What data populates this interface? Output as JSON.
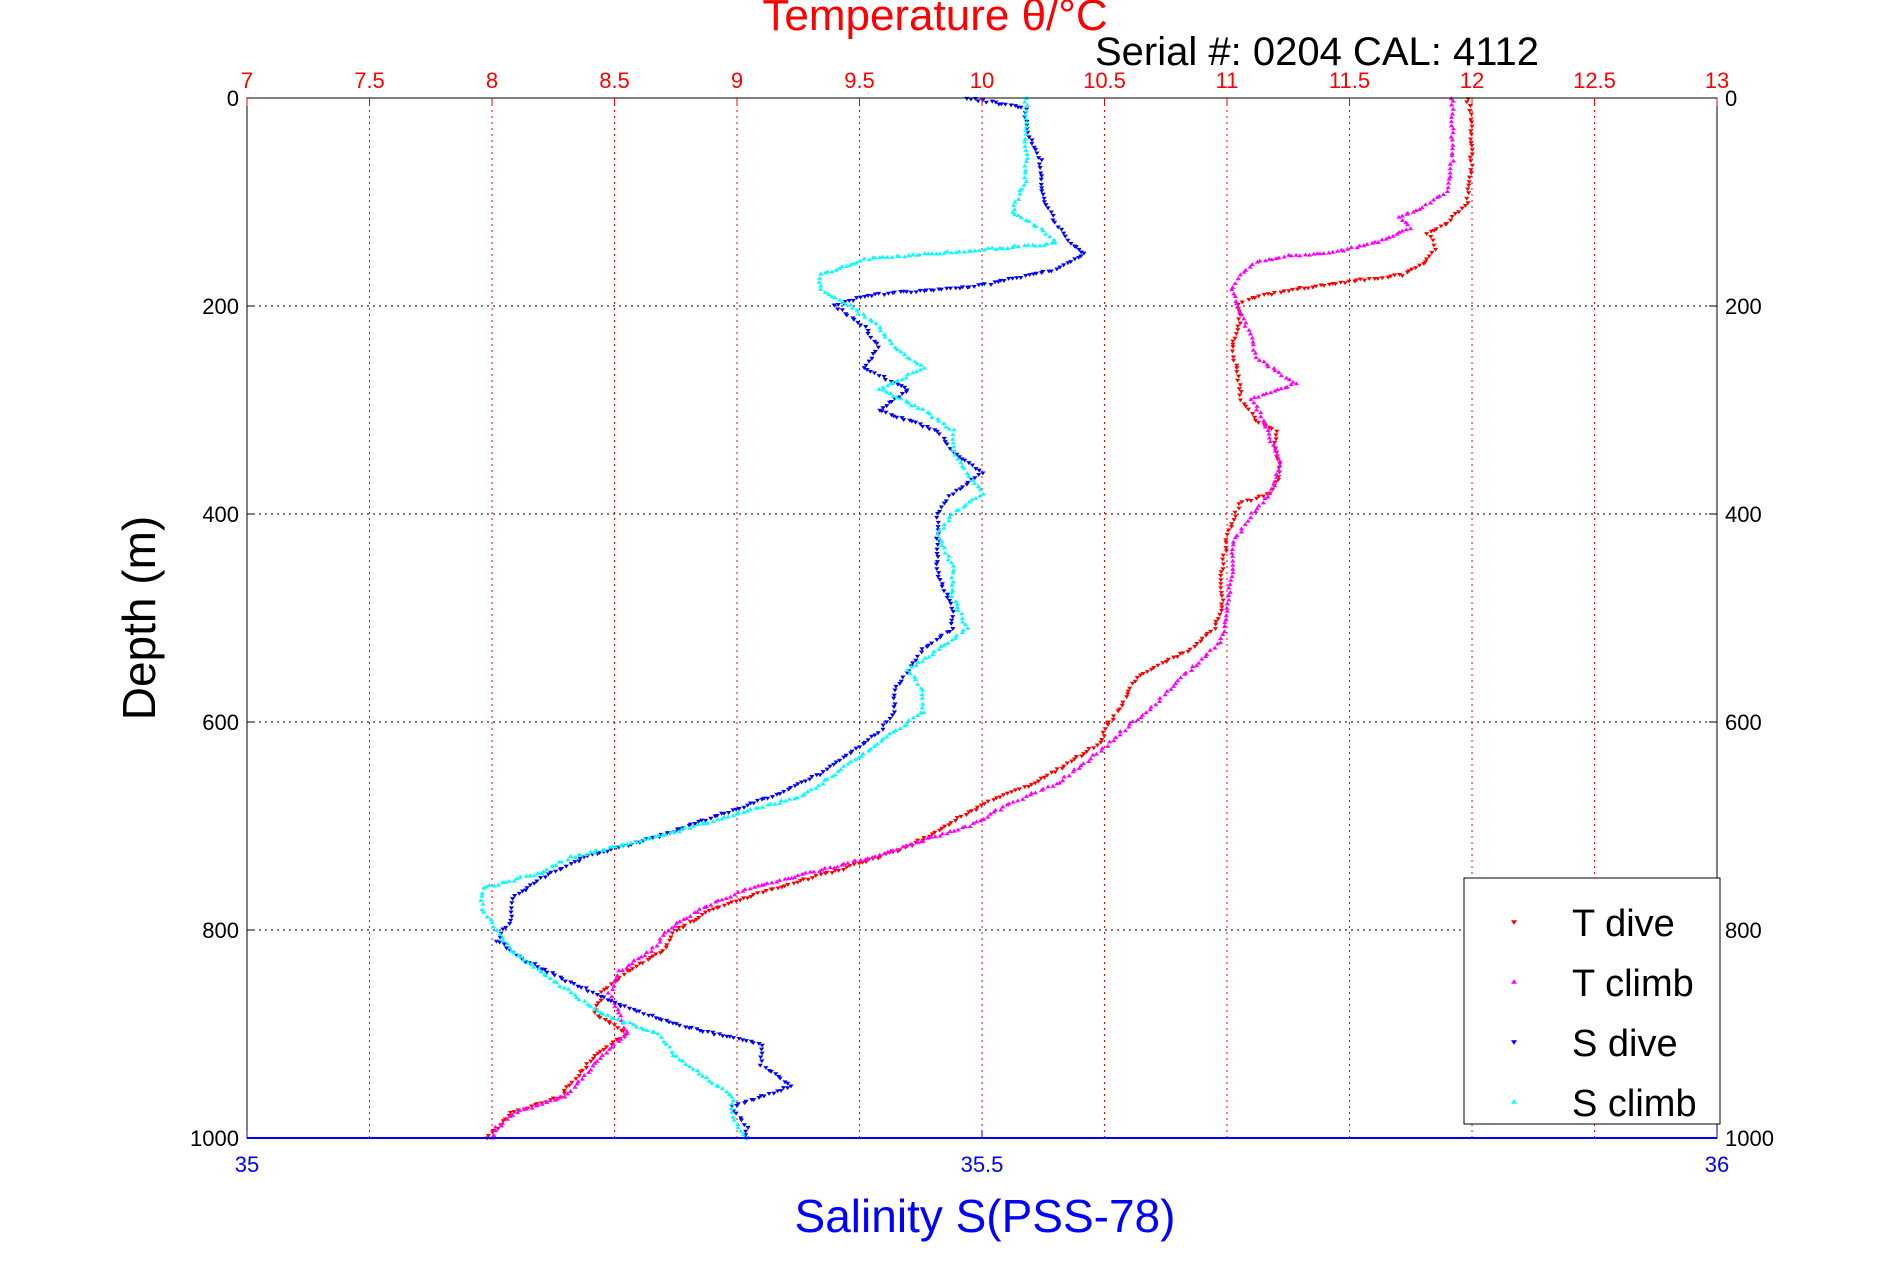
{
  "chart_data": {
    "type": "scatter",
    "title": "Temperature θ/°C",
    "subtitle": "Serial #: 0204  CAL: 4112",
    "ylabel": "Depth (m)",
    "xlabel": "Salinity S(PSS-78)",
    "y_axis": {
      "range": [
        0,
        1000
      ],
      "reversed": true,
      "ticks": [
        "0",
        "200",
        "400",
        "600",
        "800",
        "1000"
      ],
      "tick_values": [
        0,
        200,
        400,
        600,
        800,
        1000
      ]
    },
    "x_axis_temperature": {
      "position": "top",
      "range": [
        7,
        13
      ],
      "ticks": [
        "7",
        "7.5",
        "8",
        "8.5",
        "9",
        "9.5",
        "10",
        "10.5",
        "11",
        "11.5",
        "12",
        "12.5",
        "13"
      ],
      "tick_values": [
        7,
        7.5,
        8,
        8.5,
        9,
        9.5,
        10,
        10.5,
        11,
        11.5,
        12,
        12.5,
        13
      ]
    },
    "x_axis_salinity": {
      "position": "bottom",
      "range": [
        35,
        36
      ],
      "ticks": [
        "35",
        "35.5",
        "36"
      ],
      "tick_values": [
        35,
        35.5,
        36
      ]
    },
    "grid": true,
    "legend_position": "bottom-right",
    "series": [
      {
        "name": "T dive",
        "axis": "temperature",
        "color": "#ff0000",
        "marker": "triangle-down",
        "points": [
          [
            11.98,
            0
          ],
          [
            12.0,
            20
          ],
          [
            12.0,
            50
          ],
          [
            11.99,
            80
          ],
          [
            11.98,
            100
          ],
          [
            11.9,
            120
          ],
          [
            11.82,
            130
          ],
          [
            11.85,
            145
          ],
          [
            11.8,
            160
          ],
          [
            11.72,
            170
          ],
          [
            11.55,
            175
          ],
          [
            11.38,
            180
          ],
          [
            11.25,
            185
          ],
          [
            11.1,
            192
          ],
          [
            11.05,
            198
          ],
          [
            11.05,
            220
          ],
          [
            11.02,
            240
          ],
          [
            11.04,
            260
          ],
          [
            11.06,
            290
          ],
          [
            11.12,
            310
          ],
          [
            11.2,
            320
          ],
          [
            11.2,
            340
          ],
          [
            11.22,
            360
          ],
          [
            11.18,
            380
          ],
          [
            11.05,
            390
          ],
          [
            11.0,
            420
          ],
          [
            10.98,
            460
          ],
          [
            10.98,
            490
          ],
          [
            10.95,
            510
          ],
          [
            10.85,
            530
          ],
          [
            10.72,
            545
          ],
          [
            10.62,
            560
          ],
          [
            10.58,
            580
          ],
          [
            10.52,
            600
          ],
          [
            10.48,
            620
          ],
          [
            10.35,
            640
          ],
          [
            10.2,
            660
          ],
          [
            10.0,
            680
          ],
          [
            9.85,
            700
          ],
          [
            9.7,
            720
          ],
          [
            9.45,
            740
          ],
          [
            9.15,
            760
          ],
          [
            8.9,
            780
          ],
          [
            8.75,
            800
          ],
          [
            8.7,
            820
          ],
          [
            8.55,
            840
          ],
          [
            8.45,
            860
          ],
          [
            8.42,
            880
          ],
          [
            8.55,
            900
          ],
          [
            8.42,
            920
          ],
          [
            8.35,
            940
          ],
          [
            8.28,
            960
          ],
          [
            8.08,
            975
          ],
          [
            8.02,
            990
          ],
          [
            7.98,
            1000
          ]
        ]
      },
      {
        "name": "T climb",
        "axis": "temperature",
        "color": "#ff00ff",
        "marker": "triangle-up",
        "points": [
          [
            11.92,
            0
          ],
          [
            11.92,
            30
          ],
          [
            11.92,
            60
          ],
          [
            11.9,
            90
          ],
          [
            11.8,
            105
          ],
          [
            11.7,
            115
          ],
          [
            11.75,
            125
          ],
          [
            11.62,
            138
          ],
          [
            11.45,
            148
          ],
          [
            11.25,
            152
          ],
          [
            11.12,
            158
          ],
          [
            11.05,
            170
          ],
          [
            11.02,
            185
          ],
          [
            11.05,
            205
          ],
          [
            11.1,
            230
          ],
          [
            11.12,
            250
          ],
          [
            11.28,
            275
          ],
          [
            11.1,
            290
          ],
          [
            11.15,
            310
          ],
          [
            11.18,
            330
          ],
          [
            11.22,
            350
          ],
          [
            11.18,
            380
          ],
          [
            11.1,
            400
          ],
          [
            11.02,
            430
          ],
          [
            11.02,
            460
          ],
          [
            11.0,
            490
          ],
          [
            10.98,
            520
          ],
          [
            10.9,
            540
          ],
          [
            10.8,
            560
          ],
          [
            10.72,
            580
          ],
          [
            10.62,
            600
          ],
          [
            10.52,
            620
          ],
          [
            10.42,
            640
          ],
          [
            10.3,
            660
          ],
          [
            10.1,
            680
          ],
          [
            9.95,
            700
          ],
          [
            9.75,
            715
          ],
          [
            9.55,
            730
          ],
          [
            9.3,
            745
          ],
          [
            9.05,
            760
          ],
          [
            8.85,
            780
          ],
          [
            8.72,
            800
          ],
          [
            8.65,
            820
          ],
          [
            8.52,
            840
          ],
          [
            8.48,
            860
          ],
          [
            8.52,
            880
          ],
          [
            8.55,
            900
          ],
          [
            8.45,
            920
          ],
          [
            8.38,
            940
          ],
          [
            8.3,
            960
          ],
          [
            8.1,
            975
          ],
          [
            8.02,
            990
          ],
          [
            8.0,
            1000
          ]
        ]
      },
      {
        "name": "S dive",
        "axis": "salinity",
        "color": "#0000ff",
        "marker": "triangle-down",
        "points": [
          [
            35.49,
            0
          ],
          [
            35.53,
            10
          ],
          [
            35.53,
            30
          ],
          [
            35.54,
            60
          ],
          [
            35.54,
            90
          ],
          [
            35.55,
            120
          ],
          [
            35.56,
            140
          ],
          [
            35.57,
            150
          ],
          [
            35.55,
            165
          ],
          [
            35.5,
            180
          ],
          [
            35.42,
            190
          ],
          [
            35.4,
            200
          ],
          [
            35.42,
            220
          ],
          [
            35.43,
            240
          ],
          [
            35.42,
            260
          ],
          [
            35.45,
            280
          ],
          [
            35.43,
            300
          ],
          [
            35.47,
            320
          ],
          [
            35.48,
            340
          ],
          [
            35.5,
            360
          ],
          [
            35.48,
            380
          ],
          [
            35.47,
            400
          ],
          [
            35.47,
            430
          ],
          [
            35.47,
            460
          ],
          [
            35.48,
            490
          ],
          [
            35.48,
            510
          ],
          [
            35.46,
            530
          ],
          [
            35.45,
            550
          ],
          [
            35.44,
            570
          ],
          [
            35.44,
            590
          ],
          [
            35.43,
            610
          ],
          [
            35.41,
            630
          ],
          [
            35.39,
            650
          ],
          [
            35.36,
            670
          ],
          [
            35.32,
            690
          ],
          [
            35.28,
            710
          ],
          [
            35.23,
            730
          ],
          [
            35.2,
            750
          ],
          [
            35.18,
            770
          ],
          [
            35.18,
            790
          ],
          [
            35.17,
            810
          ],
          [
            35.19,
            830
          ],
          [
            35.22,
            850
          ],
          [
            35.25,
            870
          ],
          [
            35.29,
            890
          ],
          [
            35.35,
            910
          ],
          [
            35.35,
            930
          ],
          [
            35.37,
            950
          ],
          [
            35.33,
            970
          ],
          [
            35.34,
            990
          ],
          [
            35.34,
            1000
          ]
        ]
      },
      {
        "name": "S climb",
        "axis": "salinity",
        "color": "#00ffff",
        "marker": "triangle-up",
        "points": [
          [
            35.53,
            0
          ],
          [
            35.53,
            20
          ],
          [
            35.53,
            50
          ],
          [
            35.53,
            80
          ],
          [
            35.52,
            110
          ],
          [
            35.54,
            125
          ],
          [
            35.55,
            140
          ],
          [
            35.42,
            155
          ],
          [
            35.39,
            170
          ],
          [
            35.39,
            185
          ],
          [
            35.41,
            200
          ],
          [
            35.43,
            220
          ],
          [
            35.44,
            240
          ],
          [
            35.46,
            260
          ],
          [
            35.43,
            280
          ],
          [
            35.46,
            300
          ],
          [
            35.48,
            320
          ],
          [
            35.48,
            340
          ],
          [
            35.49,
            360
          ],
          [
            35.5,
            380
          ],
          [
            35.48,
            400
          ],
          [
            35.47,
            420
          ],
          [
            35.48,
            450
          ],
          [
            35.48,
            480
          ],
          [
            35.49,
            510
          ],
          [
            35.47,
            530
          ],
          [
            35.45,
            550
          ],
          [
            35.46,
            570
          ],
          [
            35.46,
            590
          ],
          [
            35.44,
            610
          ],
          [
            35.42,
            630
          ],
          [
            35.4,
            650
          ],
          [
            35.38,
            670
          ],
          [
            35.33,
            690
          ],
          [
            35.28,
            710
          ],
          [
            35.22,
            730
          ],
          [
            35.2,
            745
          ],
          [
            35.16,
            760
          ],
          [
            35.16,
            780
          ],
          [
            35.17,
            800
          ],
          [
            35.18,
            820
          ],
          [
            35.2,
            840
          ],
          [
            35.22,
            860
          ],
          [
            35.24,
            880
          ],
          [
            35.28,
            900
          ],
          [
            35.29,
            920
          ],
          [
            35.31,
            940
          ],
          [
            35.33,
            960
          ],
          [
            35.33,
            980
          ],
          [
            35.34,
            1000
          ]
        ]
      }
    ]
  },
  "colors": {
    "temperature_axis": "#ff0000",
    "salinity_axis": "#0000ff",
    "text": "#000000",
    "grid_temperature": "#ff0000",
    "grid_depth": "#000000"
  }
}
